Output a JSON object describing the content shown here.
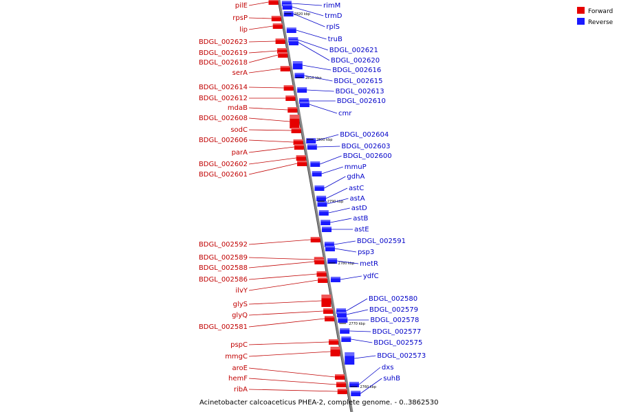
{
  "caption": "Acinetobacter calcoaceticus PHEA-2, complete genome. - 0..3862530",
  "legend": [
    {
      "label": "Forward",
      "color": "#e60000"
    },
    {
      "label": "Reverse",
      "color": "#1a1aff"
    }
  ],
  "colors": {
    "forward_label": "#c00000",
    "reverse_label": "#0000c8",
    "forward_block": "#e60000",
    "reverse_block": "#1a1aff",
    "axis": "#888888"
  },
  "ticks": [
    "2820 kbp",
    "2810 kbp",
    "2800 kbp",
    "2790 kbp",
    "2780 kbp",
    "2770 kbp",
    "2760 kbp"
  ],
  "forward_genes": [
    "pilE",
    "rpsP",
    "lip",
    "BDGL_002623",
    "BDGL_002619",
    "BDGL_002618",
    "serA",
    "BDGL_002614",
    "BDGL_002612",
    "mdaB",
    "BDGL_002608",
    "sodC",
    "BDGL_002606",
    "parA",
    "BDGL_002602",
    "BDGL_002601",
    "BDGL_002592",
    "BDGL_002589",
    "BDGL_002588",
    "BDGL_002586",
    "ilvY",
    "glyS",
    "glyQ",
    "BDGL_002581",
    "pspC",
    "mmgC",
    "aroE",
    "hemF",
    "ribA"
  ],
  "reverse_genes": [
    "rimM",
    "trmD",
    "rplS",
    "truB",
    "BDGL_002621",
    "BDGL_002620",
    "BDGL_002616",
    "BDGL_002615",
    "BDGL_002613",
    "BDGL_002610",
    "cmr",
    "BDGL_002604",
    "BDGL_002603",
    "BDGL_002600",
    "mmuP",
    "gdhA",
    "astC",
    "astA",
    "astD",
    "astB",
    "astE",
    "BDGL_002591",
    "psp3",
    "metR",
    "ydfC",
    "BDGL_002580",
    "BDGL_002579",
    "BDGL_002578",
    "BDGL_002577",
    "BDGL_002575",
    "BDGL_002573",
    "dxs",
    "suhB"
  ]
}
